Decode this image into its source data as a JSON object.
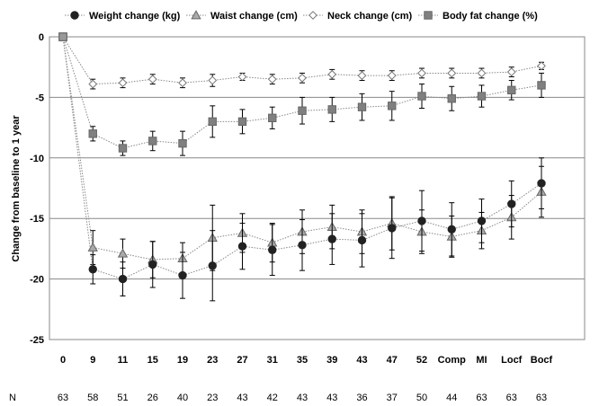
{
  "chart_data": {
    "type": "line",
    "ylabel": "Change from baseline to 1 year",
    "xlabel": "",
    "ylim": [
      -25,
      0
    ],
    "yticks": [
      0,
      -5,
      -10,
      -15,
      -20,
      -25
    ],
    "grid": "horizontal",
    "legend_position": "top",
    "categories": [
      "0",
      "9",
      "11",
      "15",
      "19",
      "23",
      "27",
      "31",
      "35",
      "39",
      "43",
      "47",
      "52",
      "Comp",
      "MI",
      "Locf",
      "Bocf"
    ],
    "n_label": "N",
    "n_values": [
      "63",
      "58",
      "51",
      "26",
      "40",
      "23",
      "43",
      "42",
      "43",
      "43",
      "36",
      "37",
      "50",
      "44",
      "63",
      "63",
      "63"
    ],
    "series": [
      {
        "name": "Weight change (kg)",
        "marker": "circle",
        "color": "#222222",
        "values": [
          0,
          -19.2,
          -20.0,
          -18.8,
          -19.7,
          -18.9,
          -17.3,
          -17.6,
          -17.2,
          -16.7,
          -16.8,
          -15.8,
          -15.2,
          -15.9,
          -15.2,
          -13.8,
          -12.1
        ],
        "errors": [
          0,
          1.2,
          1.4,
          1.9,
          1.9,
          2.9,
          1.9,
          2.1,
          2.1,
          2.1,
          2.2,
          2.5,
          2.5,
          2.2,
          1.8,
          1.9,
          2.1
        ]
      },
      {
        "name": "Waist change (cm)",
        "marker": "triangle",
        "color": "#aaaaaa",
        "values": [
          0,
          -17.4,
          -17.9,
          -18.4,
          -18.3,
          -16.6,
          -16.2,
          -17.0,
          -16.1,
          -15.7,
          -16.1,
          -15.4,
          -16.1,
          -16.5,
          -16.0,
          -14.9,
          -12.8
        ],
        "errors": [
          0,
          1.4,
          1.2,
          1.5,
          1.3,
          2.7,
          1.6,
          1.6,
          1.8,
          1.8,
          1.8,
          2.2,
          1.8,
          1.7,
          1.5,
          1.8,
          2.1
        ]
      },
      {
        "name": "Neck change (cm)",
        "marker": "diamond",
        "color": "#ffffff",
        "values": [
          0,
          -3.9,
          -3.8,
          -3.5,
          -3.8,
          -3.6,
          -3.3,
          -3.5,
          -3.4,
          -3.1,
          -3.2,
          -3.2,
          -3.0,
          -3.0,
          -3.0,
          -2.9,
          -2.4
        ],
        "errors": [
          0,
          0.4,
          0.4,
          0.4,
          0.4,
          0.5,
          0.3,
          0.4,
          0.4,
          0.4,
          0.4,
          0.4,
          0.4,
          0.4,
          0.4,
          0.4,
          0.3
        ]
      },
      {
        "name": "Body fat change (%)",
        "marker": "square",
        "color": "#808080",
        "values": [
          0,
          -8.0,
          -9.2,
          -8.6,
          -8.8,
          -7.0,
          -7.0,
          -6.7,
          -6.1,
          -6.0,
          -5.8,
          -5.7,
          -4.9,
          -5.1,
          -4.9,
          -4.4,
          -4.0
        ],
        "errors": [
          0,
          0.6,
          0.6,
          0.8,
          1.0,
          1.3,
          1.0,
          0.9,
          1.1,
          1.0,
          1.1,
          1.2,
          1.0,
          1.0,
          0.9,
          0.8,
          1.0
        ]
      }
    ]
  }
}
